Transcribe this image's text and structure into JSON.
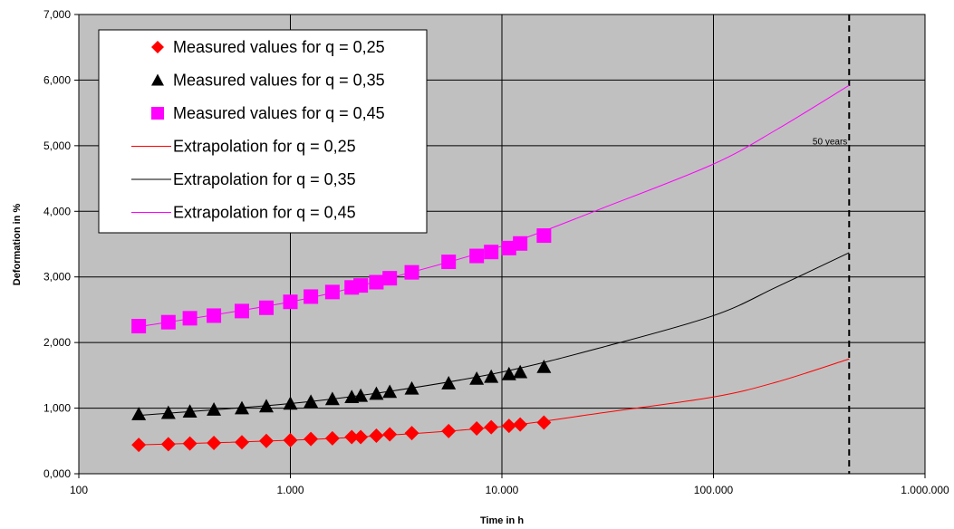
{
  "chart_data": {
    "type": "scatter",
    "xlabel": "Time in h",
    "ylabel": "Deformation in %",
    "x_scale": "log",
    "xlim": [
      100,
      1000000
    ],
    "ylim": [
      0,
      7
    ],
    "x_ticks": [
      100,
      1000,
      10000,
      100000,
      1000000
    ],
    "x_tick_labels": [
      "100",
      "1.000",
      "10.000",
      "100.000",
      "1.000.000"
    ],
    "y_ticks": [
      0,
      1,
      2,
      3,
      4,
      5,
      6,
      7
    ],
    "y_tick_labels": [
      "0,000",
      "1,000",
      "2,000",
      "3,000",
      "4,000",
      "5,000",
      "6,000",
      "7,000"
    ],
    "grid": true,
    "legend_position": "top-left",
    "plot_background": "#c0c0c0",
    "series": [
      {
        "name": "Measured values for q = 0,25",
        "kind": "markers",
        "marker": "diamond",
        "color": "#ff0000",
        "points": [
          [
            192,
            0.44
          ],
          [
            265,
            0.45
          ],
          [
            335,
            0.46
          ],
          [
            435,
            0.47
          ],
          [
            590,
            0.48
          ],
          [
            770,
            0.5
          ],
          [
            1000,
            0.51
          ],
          [
            1250,
            0.53
          ],
          [
            1580,
            0.54
          ],
          [
            1950,
            0.56
          ],
          [
            2150,
            0.56
          ],
          [
            2550,
            0.58
          ],
          [
            2950,
            0.6
          ],
          [
            3750,
            0.62
          ],
          [
            5600,
            0.65
          ],
          [
            7600,
            0.69
          ],
          [
            8900,
            0.71
          ],
          [
            10800,
            0.73
          ],
          [
            12200,
            0.75
          ],
          [
            15800,
            0.78
          ]
        ]
      },
      {
        "name": "Measured values for q = 0,35",
        "kind": "markers",
        "marker": "triangle",
        "color": "#000000",
        "points": [
          [
            192,
            0.91
          ],
          [
            265,
            0.93
          ],
          [
            335,
            0.95
          ],
          [
            435,
            0.98
          ],
          [
            590,
            1.0
          ],
          [
            770,
            1.03
          ],
          [
            1000,
            1.07
          ],
          [
            1250,
            1.1
          ],
          [
            1580,
            1.14
          ],
          [
            1950,
            1.17
          ],
          [
            2150,
            1.19
          ],
          [
            2550,
            1.22
          ],
          [
            2950,
            1.25
          ],
          [
            3750,
            1.3
          ],
          [
            5600,
            1.38
          ],
          [
            7600,
            1.45
          ],
          [
            8900,
            1.48
          ],
          [
            10800,
            1.52
          ],
          [
            12200,
            1.55
          ],
          [
            15800,
            1.63
          ]
        ]
      },
      {
        "name": "Measured values for q = 0,45",
        "kind": "markers",
        "marker": "square",
        "color": "#ff00ff",
        "points": [
          [
            192,
            2.25
          ],
          [
            265,
            2.31
          ],
          [
            335,
            2.37
          ],
          [
            435,
            2.41
          ],
          [
            590,
            2.48
          ],
          [
            770,
            2.53
          ],
          [
            1000,
            2.62
          ],
          [
            1250,
            2.7
          ],
          [
            1580,
            2.77
          ],
          [
            1950,
            2.84
          ],
          [
            2150,
            2.87
          ],
          [
            2550,
            2.92
          ],
          [
            2950,
            2.98
          ],
          [
            3750,
            3.07
          ],
          [
            5600,
            3.23
          ],
          [
            7600,
            3.32
          ],
          [
            8900,
            3.38
          ],
          [
            10800,
            3.44
          ],
          [
            12200,
            3.51
          ],
          [
            15800,
            3.63
          ]
        ]
      },
      {
        "name": "Extrapolation for q = 0,25",
        "kind": "line",
        "color": "#ff0000",
        "points": [
          [
            192,
            0.44
          ],
          [
            1000,
            0.51
          ],
          [
            3000,
            0.59
          ],
          [
            10000,
            0.72
          ],
          [
            30000,
            0.93
          ],
          [
            100000,
            1.17
          ],
          [
            200000,
            1.4
          ],
          [
            438000,
            1.75
          ]
        ]
      },
      {
        "name": "Extrapolation for q = 0,35",
        "kind": "line",
        "color": "#000000",
        "points": [
          [
            192,
            0.89
          ],
          [
            1000,
            1.07
          ],
          [
            3000,
            1.26
          ],
          [
            10000,
            1.55
          ],
          [
            30000,
            1.93
          ],
          [
            100000,
            2.41
          ],
          [
            200000,
            2.85
          ],
          [
            438000,
            3.37
          ]
        ]
      },
      {
        "name": "Extrapolation for q = 0,45",
        "kind": "line",
        "color": "#ff00ff",
        "points": [
          [
            192,
            2.24
          ],
          [
            1000,
            2.62
          ],
          [
            3000,
            2.99
          ],
          [
            10000,
            3.47
          ],
          [
            30000,
            4.05
          ],
          [
            100000,
            4.72
          ],
          [
            200000,
            5.25
          ],
          [
            438000,
            5.92
          ]
        ]
      }
    ],
    "reference_line": {
      "x": 438000,
      "style": "dashed",
      "label": "50 years"
    }
  }
}
